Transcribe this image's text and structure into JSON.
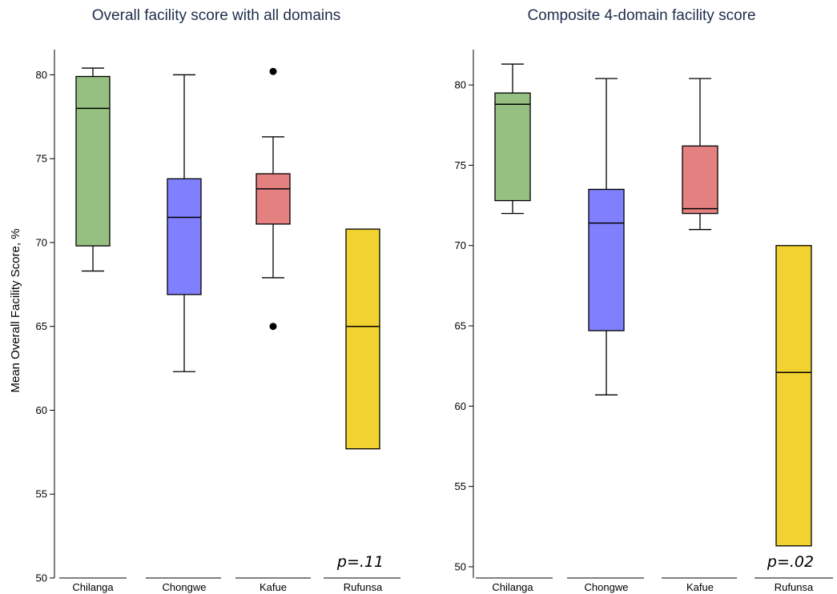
{
  "chart_data": [
    {
      "type": "box",
      "title": "Overall facility score with all domains",
      "ylabel": "Mean Overall Facility Score, %",
      "xlabel": "",
      "ylim": [
        50,
        81.5
      ],
      "yticks": [
        50,
        55,
        60,
        65,
        70,
        75,
        80
      ],
      "annotation": "p=.11",
      "categories": [
        "Chilanga",
        "Chongwe",
        "Kafue",
        "Rufunsa"
      ],
      "boxes": [
        {
          "category": "Chilanga",
          "color": "#95c081",
          "whisker_low": 68.3,
          "q1": 69.8,
          "median": 78.0,
          "q3": 79.9,
          "whisker_high": 80.4,
          "outliers": []
        },
        {
          "category": "Chongwe",
          "color": "#8080fe",
          "whisker_low": 62.3,
          "q1": 66.9,
          "median": 71.5,
          "q3": 73.8,
          "whisker_high": 80.0,
          "outliers": []
        },
        {
          "category": "Kafue",
          "color": "#e48080",
          "whisker_low": 67.9,
          "q1": 71.1,
          "median": 73.2,
          "q3": 74.1,
          "whisker_high": 76.3,
          "outliers": [
            80.2,
            65.0
          ]
        },
        {
          "category": "Rufunsa",
          "color": "#f2d230",
          "whisker_low": 57.7,
          "q1": 57.7,
          "median": 65.0,
          "q3": 70.8,
          "whisker_high": 70.8,
          "outliers": []
        }
      ]
    },
    {
      "type": "box",
      "title": "Composite 4-domain facility score",
      "ylabel": "",
      "xlabel": "",
      "ylim": [
        49.3,
        82.2
      ],
      "yticks": [
        50,
        55,
        60,
        65,
        70,
        75,
        80
      ],
      "annotation": "p=.02",
      "categories": [
        "Chilanga",
        "Chongwe",
        "Kafue",
        "Rufunsa"
      ],
      "boxes": [
        {
          "category": "Chilanga",
          "color": "#95c081",
          "whisker_low": 72.0,
          "q1": 72.8,
          "median": 78.8,
          "q3": 79.5,
          "whisker_high": 81.3,
          "outliers": []
        },
        {
          "category": "Chongwe",
          "color": "#8080fe",
          "whisker_low": 60.7,
          "q1": 64.7,
          "median": 71.4,
          "q3": 73.5,
          "whisker_high": 80.4,
          "outliers": []
        },
        {
          "category": "Kafue",
          "color": "#e48080",
          "whisker_low": 71.0,
          "q1": 72.0,
          "median": 72.3,
          "q3": 76.2,
          "whisker_high": 80.4,
          "outliers": []
        },
        {
          "category": "Rufunsa",
          "color": "#f2d230",
          "whisker_low": 51.3,
          "q1": 51.3,
          "median": 62.1,
          "q3": 70.0,
          "whisker_high": 70.0,
          "outliers": []
        }
      ]
    }
  ]
}
